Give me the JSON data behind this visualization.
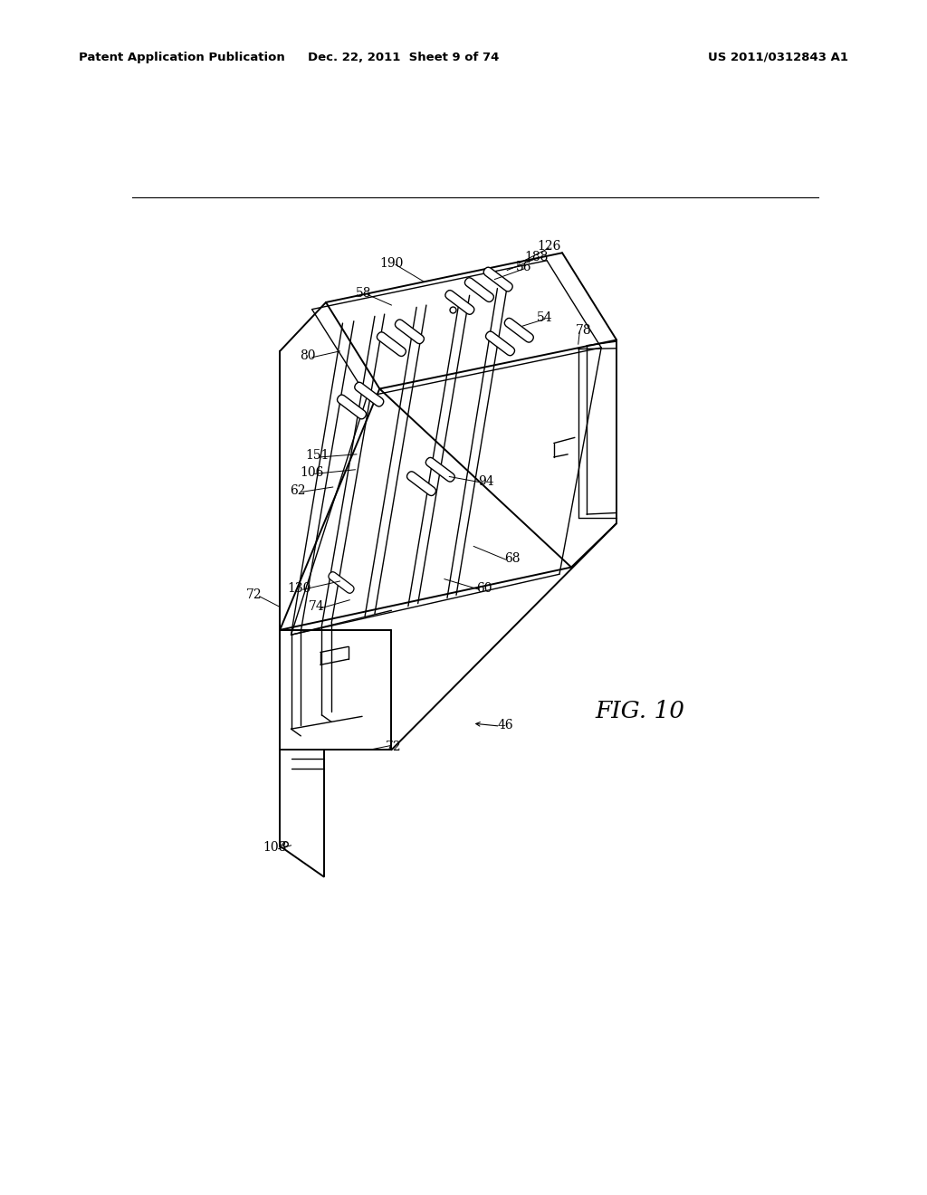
{
  "bg_color": "#ffffff",
  "header_left": "Patent Application Publication",
  "header_center": "Dec. 22, 2011  Sheet 9 of 74",
  "header_right": "US 2011/0312843 A1",
  "fig_label": "FIG. 10"
}
